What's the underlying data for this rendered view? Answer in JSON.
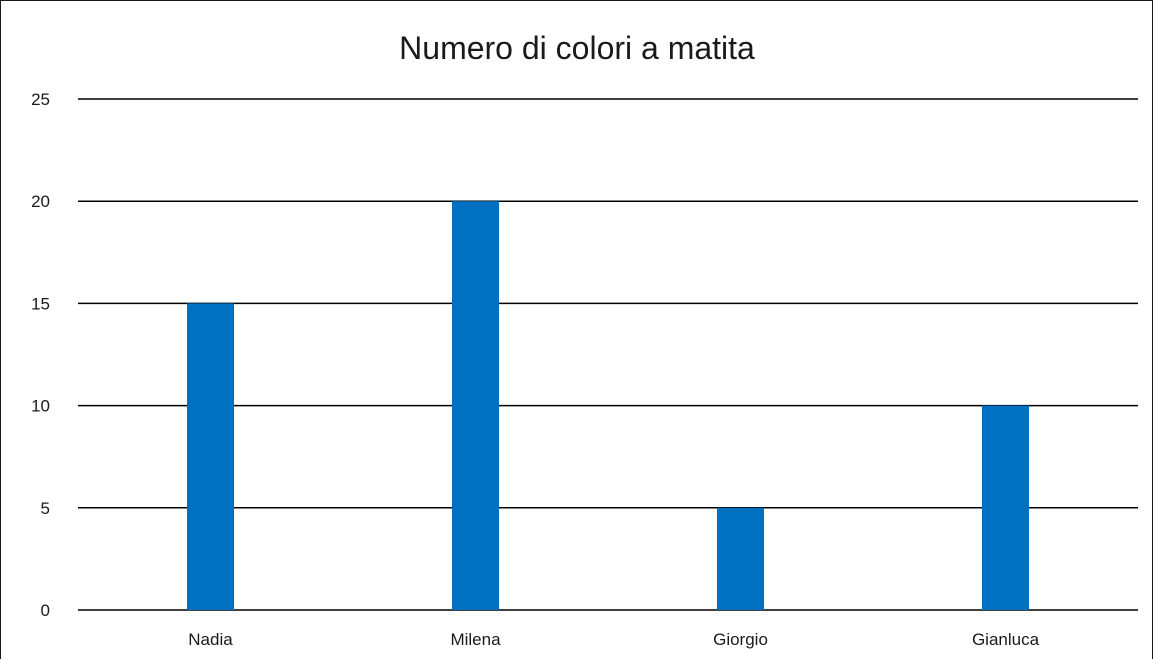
{
  "chart_data": {
    "type": "bar",
    "title": "Numero di colori a matita",
    "xlabel": "",
    "ylabel": "",
    "categories": [
      "Nadia",
      "Milena",
      "Giorgio",
      "Gianluca"
    ],
    "values": [
      15,
      20,
      5,
      10
    ],
    "ylim": [
      0,
      25
    ],
    "yticks": [
      0,
      5,
      10,
      15,
      20,
      25
    ],
    "grid": true,
    "legend": "none",
    "colors": {
      "bar": "#0070C0",
      "grid": "#000000",
      "text": "#1a1a1a"
    }
  }
}
